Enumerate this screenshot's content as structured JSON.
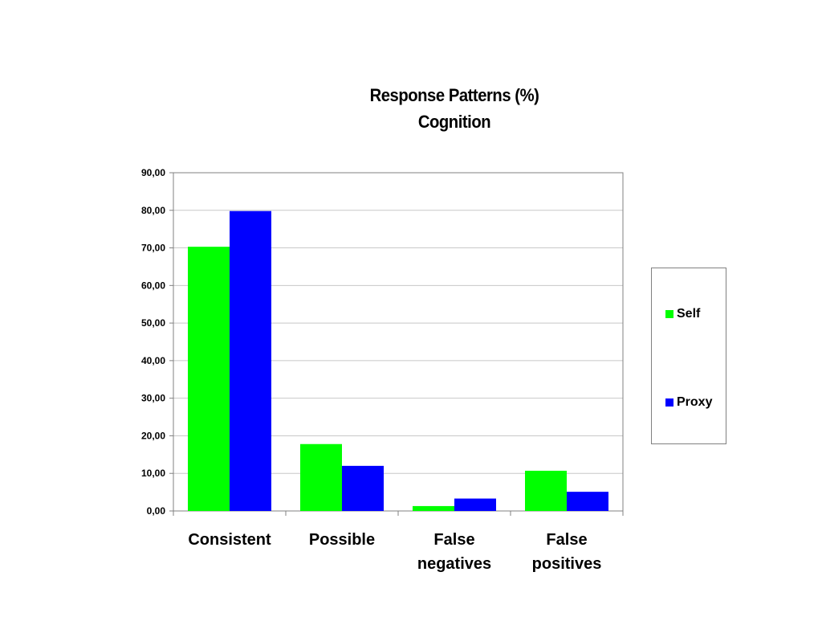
{
  "chart_data": {
    "type": "bar",
    "title": "Response Patterns (%)",
    "subtitle": "Cognition",
    "categories": [
      [
        "Consistent"
      ],
      [
        "Possible"
      ],
      [
        "False",
        "negatives"
      ],
      [
        "False",
        "positives"
      ]
    ],
    "series": [
      {
        "name": "Self",
        "color": "#00ff00",
        "values": [
          70.3,
          17.8,
          1.3,
          10.7
        ]
      },
      {
        "name": "Proxy",
        "color": "#0000ff",
        "values": [
          79.8,
          12.0,
          3.3,
          5.1
        ]
      }
    ],
    "ylim": [
      0,
      90
    ],
    "yticks": [
      "0,00",
      "10,00",
      "20,00",
      "30,00",
      "40,00",
      "50,00",
      "60,00",
      "70,00",
      "80,00",
      "90,00"
    ],
    "grid": true,
    "legend_position": "right"
  }
}
